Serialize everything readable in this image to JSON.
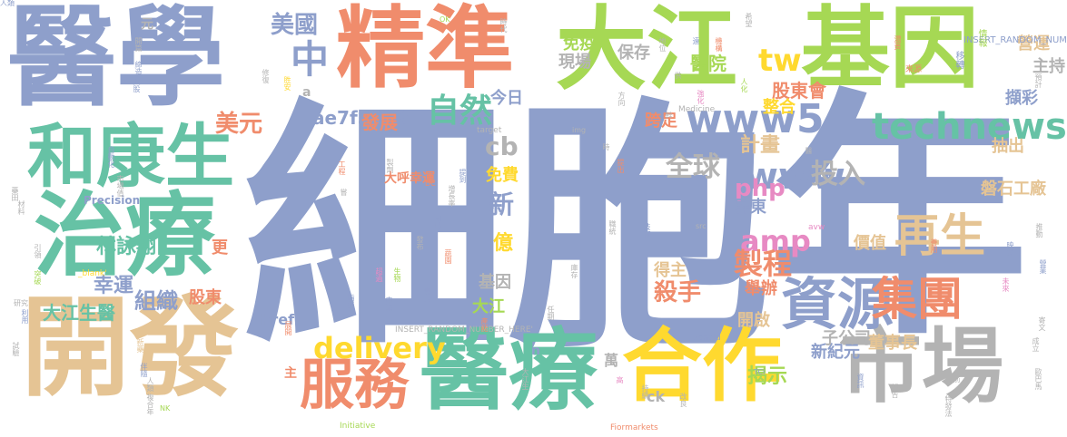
{
  "words": [
    {
      "text": "細胞",
      "color": "#8e9fcb"
    },
    {
      "text": "年",
      "color": "#8e9fcb"
    },
    {
      "text": "醫學",
      "color": "#8e9fcb"
    },
    {
      "text": "精準",
      "color": "#f08c6c"
    },
    {
      "text": "大江",
      "color": "#a6d854"
    },
    {
      "text": "基因",
      "color": "#a6d854"
    },
    {
      "text": "治療",
      "color": "#66c2a5"
    },
    {
      "text": "開發",
      "color": "#e5c494"
    },
    {
      "text": "醫療",
      "color": "#66c2a5"
    },
    {
      "text": "合作",
      "color": "#ffd92f"
    },
    {
      "text": "市場",
      "color": "#b3b3b3"
    },
    {
      "text": "和康生",
      "color": "#66c2a5"
    },
    {
      "text": "資源",
      "color": "#8e9fcb"
    },
    {
      "text": "集團",
      "color": "#f08c6c"
    },
    {
      "text": "再生",
      "color": "#e5c494"
    },
    {
      "text": "服務",
      "color": "#f08c6c"
    },
    {
      "text": "technews",
      "color": "#66c2a5"
    },
    {
      "text": "www5",
      "color": "#8e9fcb"
    },
    {
      "text": "www",
      "color": "#8e9fcb"
    },
    {
      "text": "中",
      "color": "#8e9fcb"
    },
    {
      "text": "自然",
      "color": "#66c2a5"
    },
    {
      "text": "美國",
      "color": "#8e9fcb"
    },
    {
      "text": "tw",
      "color": "#ffd92f"
    },
    {
      "text": "amp",
      "color": "#e78ac3"
    },
    {
      "text": "delivery",
      "color": "#ffd92f"
    },
    {
      "text": "製程",
      "color": "#f08c6c"
    },
    {
      "text": "投入",
      "color": "#b3b3b3"
    },
    {
      "text": "全球",
      "color": "#b3b3b3"
    },
    {
      "text": "組織",
      "color": "#8e9fcb"
    },
    {
      "text": "美元",
      "color": "#f08c6c"
    },
    {
      "text": "php",
      "color": "#e78ac3"
    },
    {
      "text": "殺手",
      "color": "#f08c6c"
    },
    {
      "text": "計畫",
      "color": "#e5c494"
    },
    {
      "text": "股東會",
      "color": "#f08c6c"
    },
    {
      "text": "醫院",
      "color": "#a6d854"
    },
    {
      "text": "cb",
      "color": "#b3b3b3"
    },
    {
      "text": "新",
      "color": "#8e9fcb"
    },
    {
      "text": "億",
      "color": "#ffd92f"
    },
    {
      "text": "大江生醫",
      "color": "#66c2a5"
    },
    {
      "text": "林詠翔",
      "color": "#66c2a5"
    },
    {
      "text": "幸運",
      "color": "#8e9fcb"
    },
    {
      "text": "ae7f5990",
      "color": "#8e9fcb"
    },
    {
      "text": "發展",
      "color": "#f08c6c"
    },
    {
      "text": "揭示",
      "color": "#a6d854"
    },
    {
      "text": "新紀元",
      "color": "#8e9fcb"
    },
    {
      "text": "子公司",
      "color": "#b3b3b3"
    },
    {
      "text": "董事長",
      "color": "#e5c494"
    },
    {
      "text": "磐石工廠",
      "color": "#e5c494"
    },
    {
      "text": "屏東",
      "color": "#8e9fcb"
    },
    {
      "text": "價值",
      "color": "#e5c494"
    },
    {
      "text": "抽出",
      "color": "#e5c494"
    },
    {
      "text": "擷彩",
      "color": "#8e9fcb"
    },
    {
      "text": "主持",
      "color": "#b3b3b3"
    },
    {
      "text": "營運",
      "color": "#e5c494"
    },
    {
      "text": "免疫",
      "color": "#a6d854"
    },
    {
      "text": "保存",
      "color": "#b3b3b3"
    },
    {
      "text": "現場",
      "color": "#b3b3b3"
    },
    {
      "text": "今日",
      "color": "#8e9fcb"
    },
    {
      "text": "跨足",
      "color": "#f08c6c"
    },
    {
      "text": "整合",
      "color": "#ffd92f"
    },
    {
      "text": "開啟",
      "color": "#e5c494"
    },
    {
      "text": "舉辦",
      "color": "#f08c6c"
    },
    {
      "text": "股東",
      "color": "#f08c6c"
    },
    {
      "text": "基因",
      "color": "#b3b3b3"
    },
    {
      "text": "大江",
      "color": "#a6d854"
    },
    {
      "text": "得主",
      "color": "#e5c494"
    },
    {
      "text": "免費",
      "color": "#ffd92f"
    },
    {
      "text": "更",
      "color": "#f08c6c"
    },
    {
      "text": "href",
      "color": "#8e9fcb"
    },
    {
      "text": "ck",
      "color": "#b3b3b3"
    },
    {
      "text": "萬",
      "color": "#b3b3b3"
    },
    {
      "text": "元",
      "color": "#b3b3b3"
    },
    {
      "text": "a",
      "color": "#b3b3b3"
    },
    {
      "text": "n",
      "color": "#8e9fcb"
    },
    {
      "text": "主",
      "color": "#f08c6c"
    },
    {
      "text": "大呼幸運",
      "color": "#f08c6c"
    },
    {
      "text": "Precision",
      "color": "#8e9fcb"
    },
    {
      "text": "INSERT_RANDOM_NUM",
      "color": "#8e9fcb"
    },
    {
      "text": "INSERT_RANDOM_NUMBER_HERE'",
      "color": "#b3b3b3"
    },
    {
      "text": "Fiormarkets",
      "color": "#f08c6c"
    },
    {
      "text": "Initiative",
      "color": "#a6d854"
    },
    {
      "text": "zoneid",
      "color": "#8e9fcb"
    },
    {
      "text": "Medicine",
      "color": "#b3b3b3"
    },
    {
      "text": "target",
      "color": "#b3b3b3"
    },
    {
      "text": "_blank'",
      "color": "#ffd92f"
    },
    {
      "text": "avw",
      "color": "#e78ac3"
    },
    {
      "text": "src",
      "color": "#b3b3b3"
    },
    {
      "text": "img",
      "color": "#b3b3b3"
    },
    {
      "text": "TCI",
      "color": "#8e9fcb"
    },
    {
      "text": "OK",
      "color": "#a6d854"
    },
    {
      "text": "NK",
      "color": "#a6d854"
    },
    {
      "text": "DC",
      "color": "#f08c6c"
    },
    {
      "text": "研究",
      "color": "#b3b3b3"
    },
    {
      "text": "來源",
      "color": "#f08c6c"
    },
    {
      "text": "情報",
      "color": "#a6d854"
    },
    {
      "text": "移轉",
      "color": "#8e9fcb"
    },
    {
      "text": "預計",
      "color": "#b3b3b3"
    },
    {
      "text": "希望",
      "color": "#b3b3b3"
    },
    {
      "text": "機構",
      "color": "#f08c6c"
    },
    {
      "text": "地位",
      "color": "#b3b3b3"
    },
    {
      "text": "遠",
      "color": "#8e9fcb"
    },
    {
      "text": "時代",
      "color": "#b3b3b3"
    },
    {
      "text": "人化",
      "color": "#a6d854"
    },
    {
      "text": "方向",
      "color": "#b3b3b3"
    },
    {
      "text": "幹",
      "color": "#b3b3b3"
    },
    {
      "text": "供",
      "color": "#b3b3b3"
    },
    {
      "text": "強化",
      "color": "#e78ac3"
    },
    {
      "text": "入股",
      "color": "#8e9fcb"
    },
    {
      "text": "胜安",
      "color": "#ffd92f"
    },
    {
      "text": "修復",
      "color": "#b3b3b3"
    },
    {
      "text": "締造",
      "color": "#8e9fcb"
    },
    {
      "text": "開篇",
      "color": "#b3b3b3"
    },
    {
      "text": "市場值",
      "color": "#b3b3b3"
    },
    {
      "text": "自動化",
      "color": "#8e9fcb"
    },
    {
      "text": "藥田",
      "color": "#b3b3b3"
    },
    {
      "text": "材料",
      "color": "#b3b3b3"
    },
    {
      "text": "引領",
      "color": "#b3b3b3"
    },
    {
      "text": "突破",
      "color": "#a6d854"
    },
    {
      "text": "利用",
      "color": "#8e9fcb"
    },
    {
      "text": "試驗",
      "color": "#b3b3b3"
    },
    {
      "text": "新藥",
      "color": "#e5c494"
    },
    {
      "text": "伴隨",
      "color": "#8e9fcb"
    },
    {
      "text": "人類",
      "color": "#b3b3b3"
    },
    {
      "text": "複合年",
      "color": "#b3b3b3"
    },
    {
      "text": "工程",
      "color": "#f08c6c"
    },
    {
      "text": "製劑",
      "color": "#b3b3b3"
    },
    {
      "text": "提到",
      "color": "#8e9fcb"
    },
    {
      "text": "增長率",
      "color": "#b3b3b3"
    },
    {
      "text": "國情",
      "color": "#8e9fcb"
    },
    {
      "text": "發布",
      "color": "#b3b3b3"
    },
    {
      "text": "蔬園",
      "color": "#f08c6c"
    },
    {
      "text": "超過",
      "color": "#e78ac3"
    },
    {
      "text": "生物",
      "color": "#a6d854"
    },
    {
      "text": "專長",
      "color": "#8e9fcb"
    },
    {
      "text": "指努",
      "color": "#8e9fcb"
    },
    {
      "text": "申請",
      "color": "#8e9fcb"
    },
    {
      "text": "展開",
      "color": "#f08c6c"
    },
    {
      "text": "庫存",
      "color": "#b3b3b3"
    },
    {
      "text": "任期",
      "color": "#b3b3b3"
    },
    {
      "text": "產能",
      "color": "#f08c6c"
    },
    {
      "text": "大江生",
      "color": "#b3b3b3"
    },
    {
      "text": "高",
      "color": "#e78ac3"
    },
    {
      "text": "持續",
      "color": "#b3b3b3"
    },
    {
      "text": "改良",
      "color": "#b3b3b3"
    },
    {
      "text": "職統",
      "color": "#b3b3b3"
    },
    {
      "text": "技術",
      "color": "#8e9fcb"
    },
    {
      "text": "善用",
      "color": "#f08c6c"
    },
    {
      "text": "映揚",
      "color": "#8e9fcb"
    },
    {
      "text": "推動",
      "color": "#b3b3b3"
    },
    {
      "text": "未來",
      "color": "#e78ac3"
    },
    {
      "text": "營業",
      "color": "#8e9fcb"
    },
    {
      "text": "寄文",
      "color": "#b3b3b3"
    },
    {
      "text": "成立",
      "color": "#b3b3b3"
    },
    {
      "text": "歐巴馬",
      "color": "#b3b3b3"
    },
    {
      "text": "前",
      "color": "#b3b3b3"
    },
    {
      "text": "報告",
      "color": "#b3b3b3"
    },
    {
      "text": "資訊",
      "color": "#8e9fcb"
    },
    {
      "text": "特發法",
      "color": "#b3b3b3"
    },
    {
      "text": "濃黃",
      "color": "#f08c6c"
    },
    {
      "text": "時",
      "color": "#b3b3b3"
    },
    {
      "text": "提出",
      "color": "#f08c6c"
    },
    {
      "text": "醫",
      "color": "#b3b3b3"
    },
    {
      "text": "嘗",
      "color": "#b3b3b3"
    },
    {
      "text": "人類",
      "color": "#8e9fcb"
    }
  ]
}
